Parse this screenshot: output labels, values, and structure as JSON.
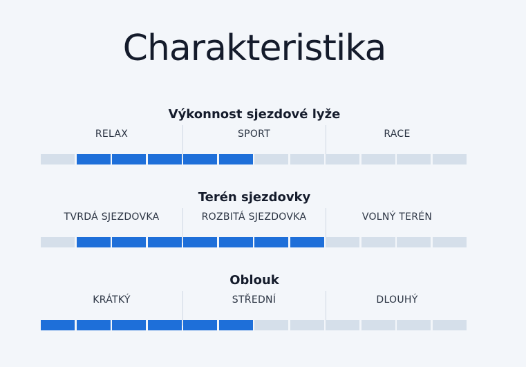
{
  "title": "Charakteristika",
  "colors": {
    "active": "#1e6fd9",
    "inactive": "#d5dfea",
    "background": "#f3f6fa"
  },
  "sections": [
    {
      "title": "Výkonnost sjezdové lyže",
      "labels": [
        "RELAX",
        "SPORT",
        "RACE"
      ],
      "segments_total": 12,
      "filled": [
        false,
        true,
        true,
        true,
        true,
        true,
        false,
        false,
        false,
        false,
        false,
        false
      ]
    },
    {
      "title": "Terén sjezdovky",
      "labels": [
        "TVRDÁ SJEZDOVKA",
        "ROZBITÁ SJEZDOVKA",
        "VOLNÝ TERÉN"
      ],
      "segments_total": 12,
      "filled": [
        false,
        true,
        true,
        true,
        true,
        true,
        true,
        true,
        false,
        false,
        false,
        false
      ]
    },
    {
      "title": "Oblouk",
      "labels": [
        "KRÁTKÝ",
        "STŘEDNÍ",
        "DLOUHÝ"
      ],
      "segments_total": 12,
      "filled": [
        true,
        true,
        true,
        true,
        true,
        true,
        false,
        false,
        false,
        false,
        false,
        false
      ]
    }
  ]
}
